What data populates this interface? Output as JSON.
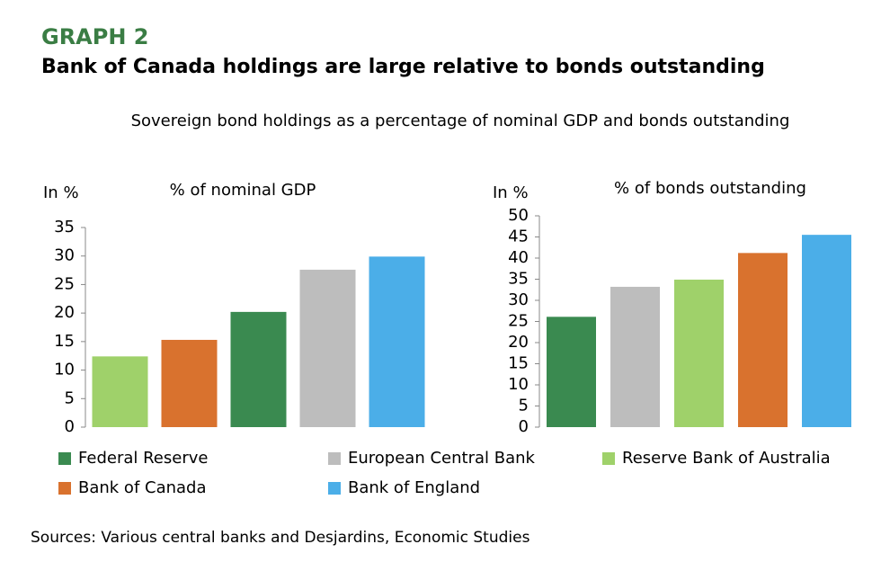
{
  "graph_label": "GRAPH 2",
  "title": "Bank of Canada holdings are large relative to bonds outstanding",
  "subtitle": "Sovereign bond holdings as a percentage of nominal GDP and bonds outstanding",
  "legend": [
    {
      "name": "Federal Reserve",
      "color": "#3a8a50"
    },
    {
      "name": "European Central Bank",
      "color": "#bdbdbd"
    },
    {
      "name": "Reserve Bank of Australia",
      "color": "#9fd16a"
    },
    {
      "name": "Bank of Canada",
      "color": "#d9722e"
    },
    {
      "name": "Bank of England",
      "color": "#4baee8"
    }
  ],
  "source": "Sources: Various central banks and Desjardins, Economic Studies",
  "chart_data": [
    {
      "type": "bar",
      "title": "% of nominal GDP",
      "y_label": "In %",
      "values": [
        12.4,
        15.3,
        20.2,
        27.6,
        29.9
      ],
      "colors": [
        "#9fd16a",
        "#d9722e",
        "#3a8a50",
        "#bdbdbd",
        "#4baee8"
      ],
      "ylim": [
        0,
        35
      ],
      "yticks": [
        0,
        5,
        10,
        15,
        20,
        25,
        30,
        35
      ]
    },
    {
      "type": "bar",
      "title": "% of  bonds outstanding",
      "y_label": "In %",
      "values": [
        26.1,
        33.2,
        34.9,
        41.2,
        45.5
      ],
      "colors": [
        "#3a8a50",
        "#bdbdbd",
        "#9fd16a",
        "#d9722e",
        "#4baee8"
      ],
      "ylim": [
        0,
        50
      ],
      "yticks": [
        0,
        5,
        10,
        15,
        20,
        25,
        30,
        35,
        40,
        45,
        50
      ]
    }
  ]
}
